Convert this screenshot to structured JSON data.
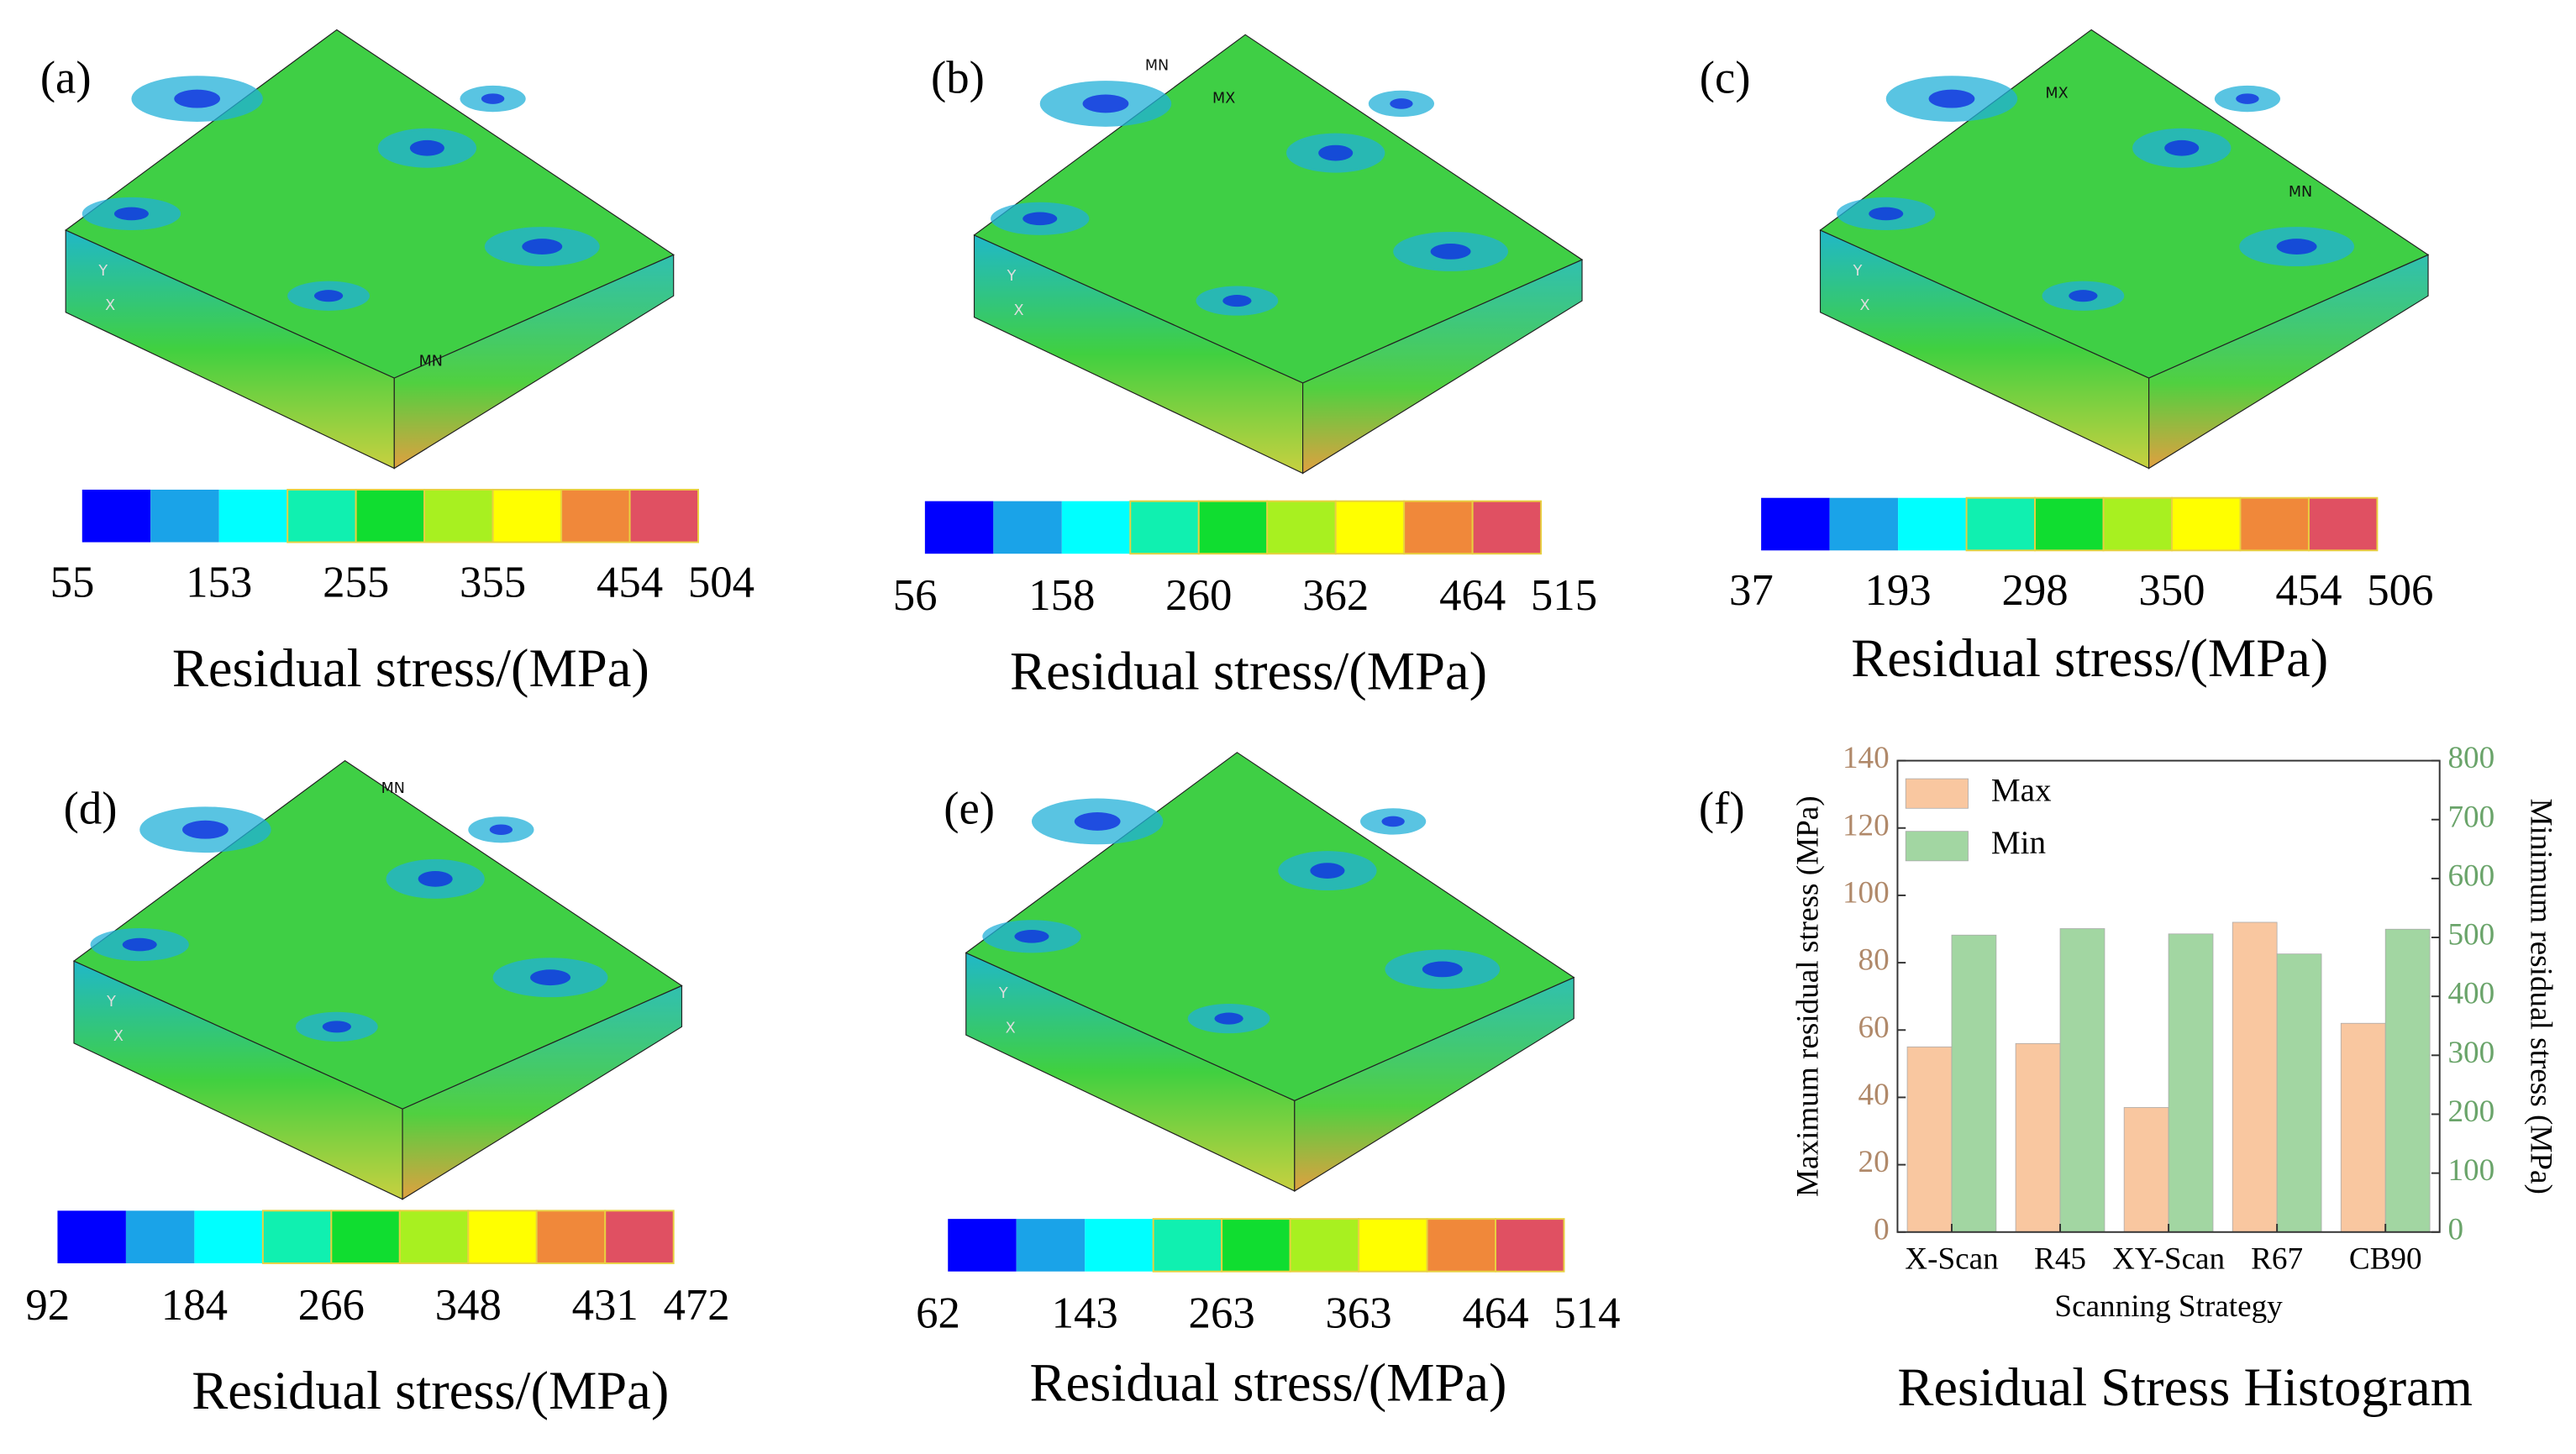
{
  "panels": [
    {
      "label": "(a)",
      "annotations": [
        "MN",
        "Y",
        "X"
      ],
      "colorbar": {
        "ticks": [
          55,
          153,
          255,
          355,
          454,
          504
        ],
        "label": "Residual stress/(MPa)"
      }
    },
    {
      "label": "(b)",
      "annotations": [
        "MN",
        "MX",
        "Y",
        "X"
      ],
      "colorbar": {
        "ticks": [
          56,
          158,
          260,
          362,
          464,
          515
        ],
        "label": "Residual stress/(MPa)"
      }
    },
    {
      "label": "(c)",
      "annotations": [
        "MX",
        "MN",
        "Y",
        "X"
      ],
      "colorbar": {
        "ticks": [
          37,
          193,
          298,
          350,
          454,
          506
        ],
        "label": "Residual stress/(MPa)"
      }
    },
    {
      "label": "(d)",
      "annotations": [
        "MN",
        "Y",
        "X"
      ],
      "colorbar": {
        "ticks": [
          92,
          184,
          266,
          348,
          431,
          472
        ],
        "label": "Residual stress/(MPa)"
      }
    },
    {
      "label": "(e)",
      "annotations": [
        "Y",
        "X"
      ],
      "colorbar": {
        "ticks": [
          62,
          143,
          263,
          363,
          464,
          514
        ],
        "label": "Residual stress/(MPa)"
      }
    }
  ],
  "colorbar_colors": [
    "#0000ff",
    "#1aa3e8",
    "#00ffff",
    "#10f0b0",
    "#10dd30",
    "#a8f020",
    "#ffff00",
    "#f0883a",
    "#e05062"
  ],
  "chart_data": {
    "type": "bar",
    "panel_label": "(f)",
    "title": "Residual Stress Histogram",
    "categories": [
      "X-Scan",
      "R45",
      "XY-Scan",
      "R67",
      "CB90"
    ],
    "series": [
      {
        "name": "Max",
        "color": "#f9c7a0",
        "values": [
          55,
          56,
          37,
          92,
          62
        ]
      },
      {
        "name": "Min",
        "color": "#a2d6a2",
        "axis": "y2",
        "values": [
          504,
          515,
          506,
          472,
          514
        ]
      }
    ],
    "xlabel": "Scanning Strategy",
    "ylabel": "Maximum residual stress (MPa)",
    "y2label": "Minimum residual stress (MPa)",
    "ylim": [
      0,
      140
    ],
    "yticks": [
      0,
      20,
      40,
      60,
      80,
      100,
      120,
      140
    ],
    "y2lim": [
      0,
      800
    ],
    "y2ticks": [
      0,
      100,
      200,
      300,
      400,
      500,
      600,
      700,
      800
    ],
    "ycolor": "#b0896a",
    "y2color": "#6aa46a",
    "legend": "upper-left"
  }
}
